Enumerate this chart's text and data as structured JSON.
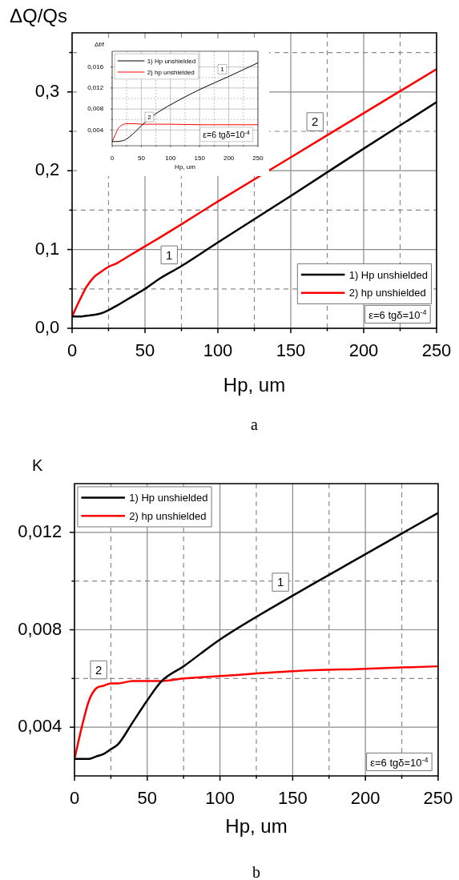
{
  "chart_data": [
    {
      "type": "line",
      "ylabel": "ΔQ/Qs",
      "xlabel": "Hp, um",
      "x": [
        0,
        5,
        10,
        15,
        20,
        25,
        30,
        40,
        50,
        60,
        75,
        100,
        150,
        200,
        250
      ],
      "series": [
        {
          "name": "1) Hp unshielded",
          "color": "#000000",
          "values": [
            0.015,
            0.015,
            0.016,
            0.017,
            0.019,
            0.023,
            0.028,
            0.039,
            0.05,
            0.063,
            0.079,
            0.109,
            0.168,
            0.228,
            0.287
          ]
        },
        {
          "name": "2) hp unshielded",
          "color": "#ff0000",
          "values": [
            0.015,
            0.035,
            0.053,
            0.065,
            0.072,
            0.078,
            0.082,
            0.093,
            0.104,
            0.115,
            0.132,
            0.161,
            0.217,
            0.273,
            0.329
          ]
        }
      ],
      "xlim": [
        0,
        250
      ],
      "ylim": [
        0,
        0.375
      ],
      "xticks": [
        0,
        {
          "value": 25,
          "label": null
        },
        50,
        {
          "value": 75,
          "label": null
        },
        100,
        {
          "value": 125,
          "label": null
        },
        150,
        {
          "value": 175,
          "label": null
        },
        200,
        {
          "value": 225,
          "label": null
        },
        250
      ],
      "yticks": [
        {
          "value": 0,
          "label": "0,0"
        },
        {
          "value": 0.05,
          "label": null
        },
        {
          "value": 0.1,
          "label": "0,1"
        },
        {
          "value": 0.15,
          "label": null
        },
        {
          "value": 0.2,
          "label": "0,2"
        },
        {
          "value": 0.25,
          "label": null
        },
        {
          "value": 0.3,
          "label": "0,3"
        },
        {
          "value": 0.35,
          "label": null
        }
      ],
      "grid": true,
      "legend": "bottom right",
      "marker": "none",
      "line_style": "solid",
      "annotations": [
        "ε=6 tgδ=10$^{-4}$",
        "a",
        {
          "text": "1",
          "x": 75,
          "y": 0.076
        },
        {
          "text": "2",
          "x": 175,
          "y": 0.245
        }
      ]
    },
    {
      "type": "line",
      "ylabel": "Δf/f",
      "xlabel": "Hp, um",
      "x": [
        0,
        5,
        10,
        15,
        20,
        25,
        30,
        40,
        50,
        60,
        75,
        100,
        150,
        200,
        250
      ],
      "series": [
        {
          "name": "1) Hp unshielded",
          "color": "#000000",
          "values": [
            0.0018,
            0.0018,
            0.0018,
            0.0019,
            0.002,
            0.0023,
            0.0027,
            0.0037,
            0.0048,
            0.0058,
            0.0071,
            0.0088,
            0.0117,
            0.0142,
            0.0168
          ]
        },
        {
          "name": "2) hp unshielded",
          "color": "#ff0000",
          "values": [
            0.0018,
            0.003,
            0.0042,
            0.0048,
            0.0051,
            0.0052,
            0.0052,
            0.0052,
            0.0051,
            0.0051,
            0.0051,
            0.0051,
            0.005,
            0.005,
            0.005
          ]
        }
      ],
      "xlim": [
        0,
        250
      ],
      "ylim": [
        0.001,
        0.019
      ],
      "xticks": [
        0,
        {
          "value": 25,
          "label": null
        },
        50,
        {
          "value": 75,
          "label": null
        },
        100,
        {
          "value": 125,
          "label": null
        },
        150,
        {
          "value": 175,
          "label": null
        },
        200,
        {
          "value": 225,
          "label": null
        },
        250
      ],
      "yticks": [
        {
          "value": 0.004,
          "label": "0,004"
        },
        {
          "value": 0.006,
          "label": null
        },
        {
          "value": 0.008,
          "label": "0,008"
        },
        {
          "value": 0.01,
          "label": null
        },
        {
          "value": 0.012,
          "label": "0,012"
        },
        {
          "value": 0.014,
          "label": null
        },
        {
          "value": 0.016,
          "label": "0,016"
        }
      ],
      "grid": true,
      "legend": "top left",
      "marker": "none",
      "line_style": "solid",
      "annotations": [
        "ε=6 tgδ=10$^{-4}$",
        {
          "text": "1",
          "x": 200,
          "y": 0.0142
        },
        {
          "text": "2",
          "x": 75,
          "y": 0.0051
        }
      ]
    },
    {
      "type": "line",
      "ylabel": "K",
      "xlabel": "Hp, um",
      "x": [
        0,
        5,
        10,
        15,
        20,
        25,
        30,
        40,
        50,
        60,
        75,
        100,
        150,
        200,
        250
      ],
      "series": [
        {
          "name": "1) Hp unshielded",
          "color": "#000000",
          "values": [
            0.0027,
            0.0027,
            0.0027,
            0.0028,
            0.0029,
            0.0031,
            0.0033,
            0.0042,
            0.0051,
            0.0059,
            0.0065,
            0.0076,
            0.0094,
            0.0111,
            0.0128
          ]
        },
        {
          "name": "2) hp unshielded",
          "color": "#ff0000",
          "values": [
            0.0027,
            0.004,
            0.0051,
            0.0056,
            0.0057,
            0.0058,
            0.0058,
            0.0059,
            0.0059,
            0.0059,
            0.006,
            0.0061,
            0.0063,
            0.0064,
            0.0065
          ]
        }
      ],
      "xlim": [
        0,
        250
      ],
      "ylim": [
        0.002,
        0.014
      ],
      "xticks": [
        0,
        {
          "value": 25,
          "label": null
        },
        50,
        {
          "value": 75,
          "label": null
        },
        100,
        {
          "value": 125,
          "label": null
        },
        150,
        {
          "value": 175,
          "label": null
        },
        200,
        {
          "value": 225,
          "label": null
        },
        250
      ],
      "yticks": [
        {
          "value": 0.004,
          "label": "0,004"
        },
        {
          "value": 0.006,
          "label": null
        },
        {
          "value": 0.008,
          "label": "0,008"
        },
        {
          "value": 0.01,
          "label": null
        },
        {
          "value": 0.012,
          "label": "0,012"
        }
      ],
      "grid": true,
      "legend": "top left",
      "marker": "none",
      "line_style": "solid",
      "annotations": [
        "ε=6 tgδ=10$^{-4}$",
        "b",
        {
          "text": "1",
          "x": 150,
          "y": 0.0094
        },
        {
          "text": "2",
          "x": 25,
          "y": 0.0058
        }
      ]
    }
  ]
}
